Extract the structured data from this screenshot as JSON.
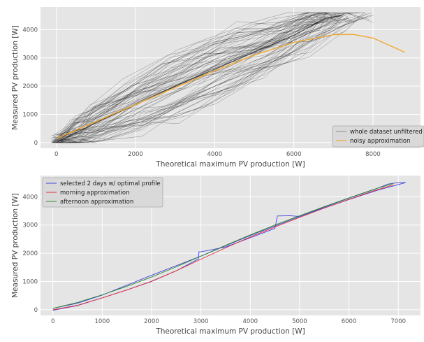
{
  "chart_data": [
    {
      "type": "line",
      "xlabel": "Theoretical maximum PV production [W]",
      "ylabel": "Measured PV production [W]",
      "xlim": [
        -400,
        9200
      ],
      "ylim": [
        -200,
        4800
      ],
      "xticks": [
        "0",
        "2000",
        "4000",
        "6000",
        "8000"
      ],
      "yticks": [
        "0",
        "1000",
        "2000",
        "3000",
        "4000"
      ],
      "grid": true,
      "legend_position": "bottom-right",
      "series": [
        {
          "name": "whole dataset unfiltered",
          "color": "#222222",
          "style": "dense-cloud",
          "x": [
            0,
            500,
            1000,
            2000,
            3000,
            4000,
            5000,
            6000,
            6800,
            7200
          ],
          "y": [
            0,
            350,
            700,
            1350,
            2000,
            2600,
            3200,
            3800,
            4400,
            4500
          ]
        },
        {
          "name": "noisy approximation",
          "color": "#f0a830",
          "x": [
            0,
            500,
            1000,
            2000,
            3000,
            4000,
            5000,
            6000,
            7000,
            7500,
            8000,
            8800
          ],
          "y": [
            150,
            450,
            750,
            1350,
            1950,
            2550,
            3100,
            3550,
            3820,
            3830,
            3700,
            3200
          ]
        }
      ]
    },
    {
      "type": "line",
      "xlabel": "Theoretical maximum PV production [W]",
      "ylabel": "Measured PV production [W]",
      "xlim": [
        -250,
        7450
      ],
      "ylim": [
        -200,
        4750
      ],
      "xticks": [
        "0",
        "1000",
        "2000",
        "3000",
        "4000",
        "5000",
        "6000",
        "7000"
      ],
      "yticks": [
        "0",
        "1000",
        "2000",
        "3000",
        "4000"
      ],
      "grid": true,
      "legend_position": "top-left",
      "series": [
        {
          "name": "selected 2 days w/ optimal profile",
          "color": "#4444dd",
          "x": [
            0,
            500,
            1000,
            1500,
            2000,
            2500,
            2950,
            2960,
            3000,
            3500,
            4000,
            4500,
            4550,
            4800,
            5000,
            5500,
            6000,
            6500,
            6800,
            7000,
            7150,
            7000,
            6600,
            6000,
            5000,
            4000,
            3000,
            2000,
            1000,
            500,
            0
          ],
          "y": [
            -20,
            150,
            420,
            700,
            1000,
            1380,
            1800,
            2050,
            2050,
            2220,
            2550,
            2880,
            3320,
            3330,
            3300,
            3630,
            3950,
            4250,
            4450,
            4500,
            4500,
            4430,
            4240,
            3900,
            3300,
            2630,
            1900,
            1220,
            520,
            230,
            50
          ]
        },
        {
          "name": "morning approximation",
          "color": "#e0303a",
          "x": [
            0,
            500,
            1000,
            1500,
            2000,
            2500,
            3000,
            3500,
            4000,
            4500,
            5000,
            5500,
            6000,
            6500,
            6900
          ],
          "y": [
            0,
            160,
            420,
            700,
            1010,
            1380,
            1790,
            2190,
            2580,
            2930,
            3270,
            3600,
            3910,
            4210,
            4420
          ]
        },
        {
          "name": "afternoon approximation",
          "color": "#2e8b2e",
          "x": [
            0,
            500,
            1000,
            1500,
            2000,
            2500,
            3000,
            3500,
            4000,
            4500,
            5000,
            5500,
            6000,
            6500,
            6900
          ],
          "y": [
            50,
            260,
            530,
            830,
            1160,
            1520,
            1900,
            2280,
            2650,
            3000,
            3330,
            3650,
            3960,
            4260,
            4470
          ]
        }
      ]
    }
  ]
}
